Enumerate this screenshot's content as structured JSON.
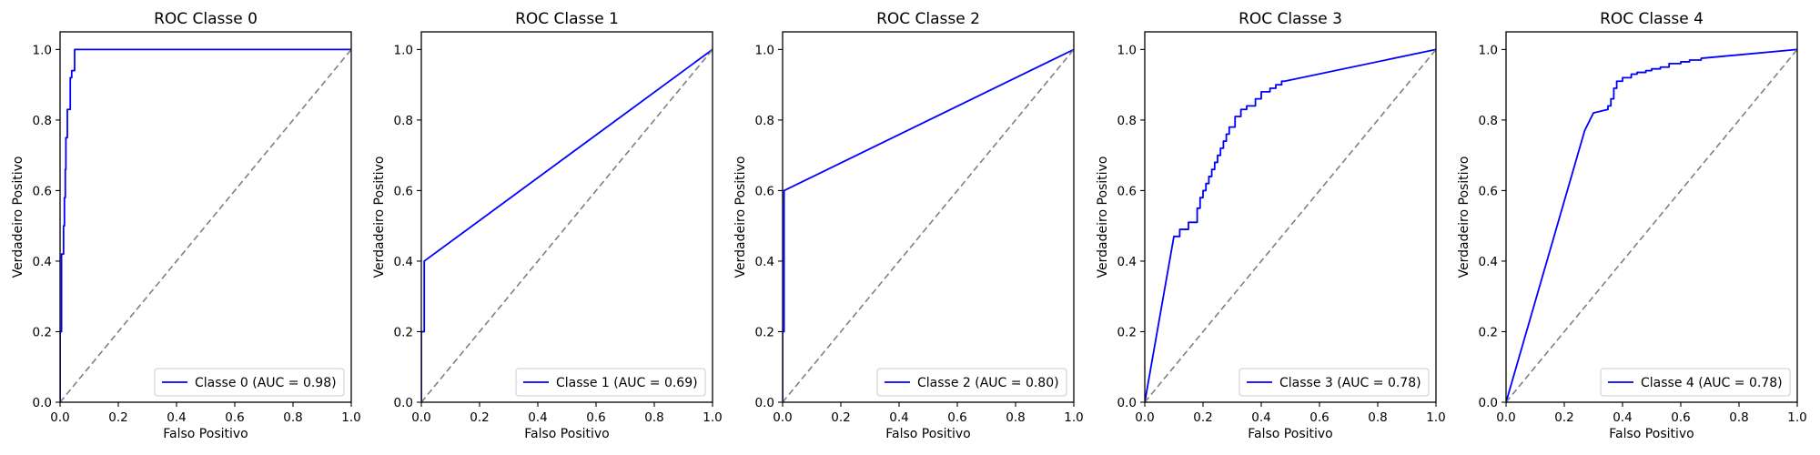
{
  "chart_data": [
    {
      "type": "line",
      "title": "ROC Classe 0",
      "xlabel": "Falso Positivo",
      "ylabel": "Verdadeiro Positivo",
      "xlim": [
        0.0,
        1.0
      ],
      "ylim": [
        0.0,
        1.05
      ],
      "xticks": [
        "0.0",
        "0.2",
        "0.4",
        "0.6",
        "0.8",
        "1.0"
      ],
      "yticks": [
        "0.0",
        "0.2",
        "0.4",
        "0.6",
        "0.8",
        "1.0"
      ],
      "grid": false,
      "legend_position": "lower-right",
      "series": [
        {
          "name": "Classe 0 (AUC = 0.98)",
          "color": "#0000ff",
          "x": [
            0.0,
            0.0,
            0.005,
            0.005,
            0.012,
            0.012,
            0.015,
            0.015,
            0.018,
            0.018,
            0.02,
            0.02,
            0.025,
            0.025,
            0.035,
            0.035,
            0.04,
            0.04,
            0.05,
            0.05,
            1.0
          ],
          "y": [
            0.0,
            0.2,
            0.2,
            0.42,
            0.42,
            0.5,
            0.5,
            0.58,
            0.58,
            0.66,
            0.66,
            0.75,
            0.75,
            0.83,
            0.83,
            0.92,
            0.92,
            0.94,
            0.94,
            1.0,
            1.0
          ]
        },
        {
          "name": "",
          "color": "#808080",
          "dashed": true,
          "x": [
            0.0,
            1.0
          ],
          "y": [
            0.0,
            1.0
          ]
        }
      ]
    },
    {
      "type": "line",
      "title": "ROC Classe 1",
      "xlabel": "Falso Positivo",
      "ylabel": "Verdadeiro Positivo",
      "xlim": [
        0.0,
        1.0
      ],
      "ylim": [
        0.0,
        1.05
      ],
      "xticks": [
        "0.0",
        "0.2",
        "0.4",
        "0.6",
        "0.8",
        "1.0"
      ],
      "yticks": [
        "0.0",
        "0.2",
        "0.4",
        "0.6",
        "0.8",
        "1.0"
      ],
      "grid": false,
      "legend_position": "lower-right",
      "series": [
        {
          "name": "Classe 1 (AUC = 0.69)",
          "color": "#0000ff",
          "x": [
            0.0,
            0.0,
            0.01,
            0.01,
            1.0
          ],
          "y": [
            0.0,
            0.2,
            0.2,
            0.4,
            1.0
          ]
        },
        {
          "name": "",
          "color": "#808080",
          "dashed": true,
          "x": [
            0.0,
            1.0
          ],
          "y": [
            0.0,
            1.0
          ]
        }
      ]
    },
    {
      "type": "line",
      "title": "ROC Classe 2",
      "xlabel": "Falso Positivo",
      "ylabel": "Verdadeiro Positivo",
      "xlim": [
        0.0,
        1.0
      ],
      "ylim": [
        0.0,
        1.05
      ],
      "xticks": [
        "0.0",
        "0.2",
        "0.4",
        "0.6",
        "0.8",
        "1.0"
      ],
      "yticks": [
        "0.0",
        "0.2",
        "0.4",
        "0.6",
        "0.8",
        "1.0"
      ],
      "grid": false,
      "legend_position": "lower-right",
      "series": [
        {
          "name": "Classe 2 (AUC = 0.80)",
          "color": "#0000ff",
          "x": [
            0.0,
            0.0,
            0.005,
            0.005,
            1.0
          ],
          "y": [
            0.0,
            0.2,
            0.2,
            0.6,
            1.0
          ]
        },
        {
          "name": "",
          "color": "#808080",
          "dashed": true,
          "x": [
            0.0,
            1.0
          ],
          "y": [
            0.0,
            1.0
          ]
        }
      ]
    },
    {
      "type": "line",
      "title": "ROC Classe 3",
      "xlabel": "Falso Positivo",
      "ylabel": "Verdadeiro Positivo",
      "xlim": [
        0.0,
        1.0
      ],
      "ylim": [
        0.0,
        1.05
      ],
      "xticks": [
        "0.0",
        "0.2",
        "0.4",
        "0.6",
        "0.8",
        "1.0"
      ],
      "yticks": [
        "0.0",
        "0.2",
        "0.4",
        "0.6",
        "0.8",
        "1.0"
      ],
      "grid": false,
      "legend_position": "lower-right",
      "series": [
        {
          "name": "Classe 3 (AUC = 0.78)",
          "color": "#0000ff",
          "x": [
            0.0,
            0.1,
            0.12,
            0.12,
            0.15,
            0.15,
            0.18,
            0.18,
            0.19,
            0.19,
            0.2,
            0.2,
            0.21,
            0.21,
            0.22,
            0.22,
            0.23,
            0.23,
            0.24,
            0.24,
            0.25,
            0.25,
            0.26,
            0.26,
            0.27,
            0.27,
            0.28,
            0.28,
            0.29,
            0.29,
            0.31,
            0.31,
            0.33,
            0.33,
            0.35,
            0.35,
            0.38,
            0.38,
            0.4,
            0.4,
            0.43,
            0.43,
            0.45,
            0.45,
            0.47,
            0.47,
            0.48,
            0.48,
            1.0
          ],
          "y": [
            0.0,
            0.47,
            0.47,
            0.49,
            0.49,
            0.51,
            0.51,
            0.55,
            0.55,
            0.58,
            0.58,
            0.6,
            0.6,
            0.62,
            0.62,
            0.64,
            0.64,
            0.66,
            0.66,
            0.68,
            0.68,
            0.7,
            0.7,
            0.72,
            0.72,
            0.74,
            0.74,
            0.76,
            0.76,
            0.78,
            0.78,
            0.81,
            0.81,
            0.83,
            0.83,
            0.84,
            0.84,
            0.86,
            0.86,
            0.88,
            0.88,
            0.89,
            0.89,
            0.9,
            0.9,
            0.91,
            0.91,
            0.91,
            1.0
          ]
        },
        {
          "name": "",
          "color": "#808080",
          "dashed": true,
          "x": [
            0.0,
            1.0
          ],
          "y": [
            0.0,
            1.0
          ]
        }
      ]
    },
    {
      "type": "line",
      "title": "ROC Classe 4",
      "xlabel": "Falso Positivo",
      "ylabel": "Verdadeiro Positivo",
      "xlim": [
        0.0,
        1.0
      ],
      "ylim": [
        0.0,
        1.05
      ],
      "xticks": [
        "0.0",
        "0.2",
        "0.4",
        "0.6",
        "0.8",
        "1.0"
      ],
      "yticks": [
        "0.0",
        "0.2",
        "0.4",
        "0.6",
        "0.8",
        "1.0"
      ],
      "grid": false,
      "legend_position": "lower-right",
      "series": [
        {
          "name": "Classe 4 (AUC = 0.78)",
          "color": "#0000ff",
          "x": [
            0.0,
            0.27,
            0.3,
            0.35,
            0.35,
            0.36,
            0.36,
            0.37,
            0.37,
            0.38,
            0.38,
            0.4,
            0.4,
            0.43,
            0.43,
            0.45,
            0.45,
            0.48,
            0.48,
            0.5,
            0.5,
            0.53,
            0.53,
            0.56,
            0.56,
            0.6,
            0.6,
            0.63,
            0.63,
            0.67,
            0.67,
            1.0
          ],
          "y": [
            0.0,
            0.77,
            0.82,
            0.83,
            0.84,
            0.84,
            0.86,
            0.86,
            0.89,
            0.89,
            0.91,
            0.91,
            0.92,
            0.92,
            0.93,
            0.93,
            0.935,
            0.935,
            0.94,
            0.94,
            0.945,
            0.945,
            0.95,
            0.95,
            0.96,
            0.96,
            0.965,
            0.965,
            0.97,
            0.97,
            0.975,
            1.0
          ]
        },
        {
          "name": "",
          "color": "#808080",
          "dashed": true,
          "x": [
            0.0,
            1.0
          ],
          "y": [
            0.0,
            1.0
          ]
        }
      ]
    }
  ]
}
